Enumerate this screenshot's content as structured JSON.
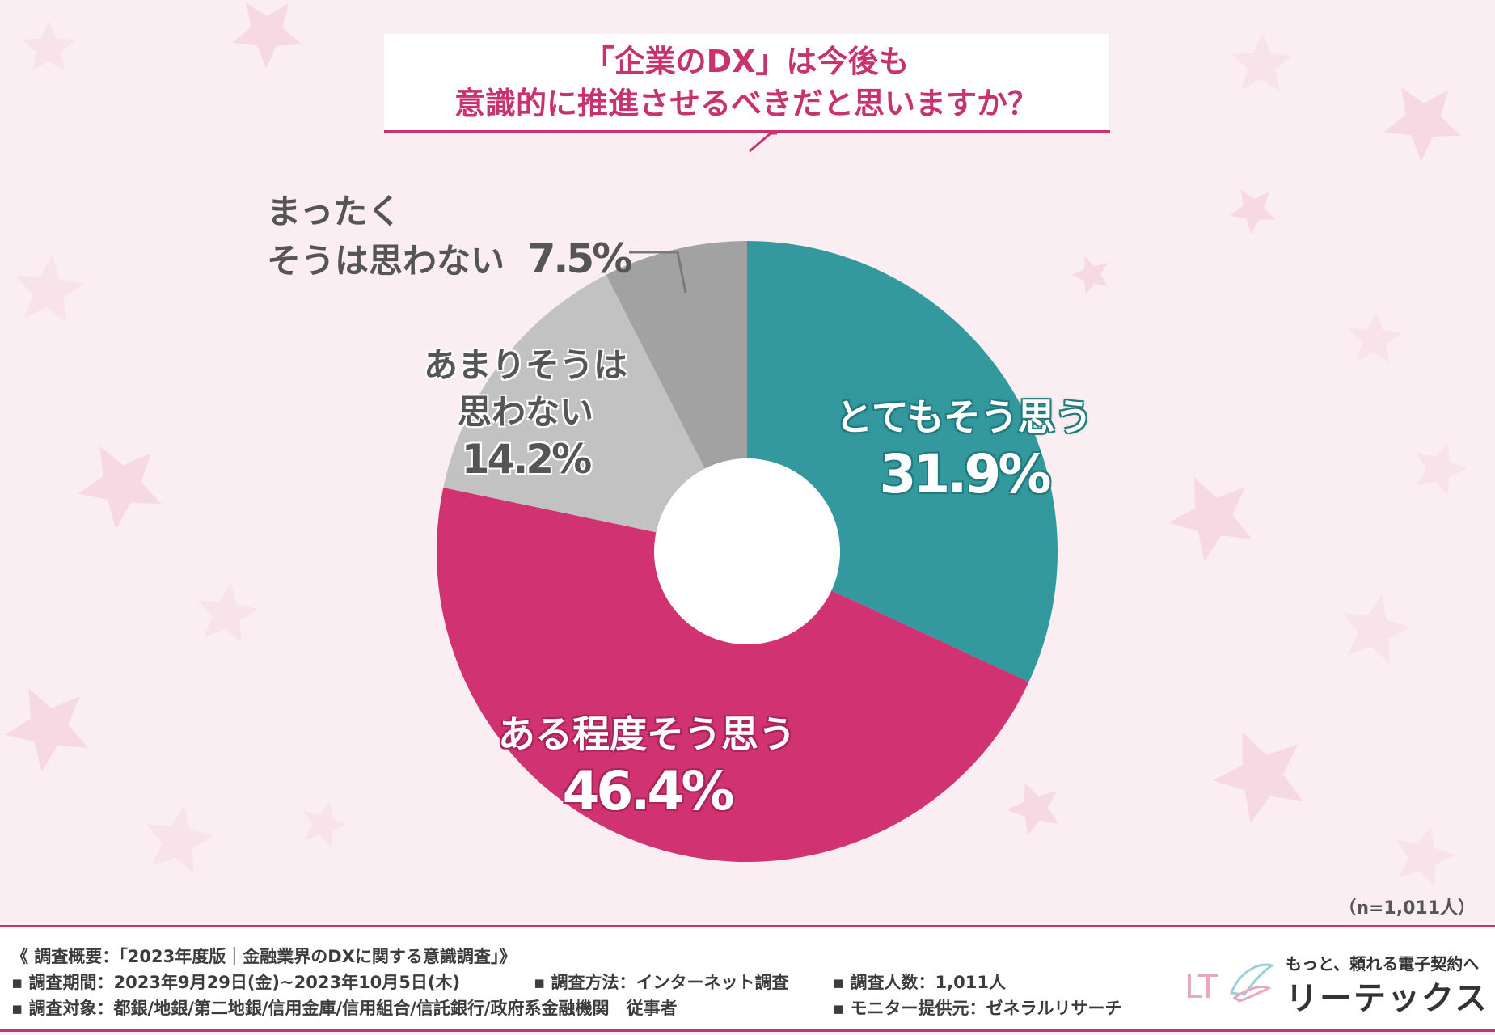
{
  "title": {
    "line1": "「企業のDX」は今後も",
    "line2": "意識的に推進させるべきだと思いますか？"
  },
  "chart_data": {
    "type": "pie",
    "donut": true,
    "categories": [
      "とてもそう思う",
      "ある程度そう思う",
      "あまりそうは思わない",
      "まったくそうは思わない"
    ],
    "values": [
      31.9,
      46.4,
      14.2,
      7.5
    ],
    "value_labels": [
      "31.9%",
      "46.4%",
      "14.2%",
      "7.5%"
    ],
    "colors": [
      "#33999e",
      "#d13272",
      "#c2c2c2",
      "#a2a2a2"
    ],
    "labels": {
      "s0_text": "とてもそう思う",
      "s1_text": "ある程度そう思う",
      "s2_line1": "あまりそうは",
      "s2_line2": "思わない",
      "s3_line1": "まったく",
      "s3_line2": "そうは思わない"
    },
    "n_note": "（n=1,011人）"
  },
  "footer": {
    "summary": "《 調査概要：「2023年度版｜金融業界のDXに関する意識調査」》",
    "period": "▪ 調査期間：2023年9月29日(金)~2023年10月5日(木)",
    "method": "▪ 調査方法：インターネット調査",
    "count": "▪ 調査人数：1,011人",
    "target": "▪ 調査対象：都銀/地銀/第二地銀/信用金庫/信用組合/信託銀行/政府系金融機関　従事者",
    "monitor": "▪ モニター提供元：ゼネラルリサーチ"
  },
  "brand": {
    "mark": "LT",
    "tagline": "もっと、頼れる電子契約へ",
    "name": "リーテックス"
  }
}
